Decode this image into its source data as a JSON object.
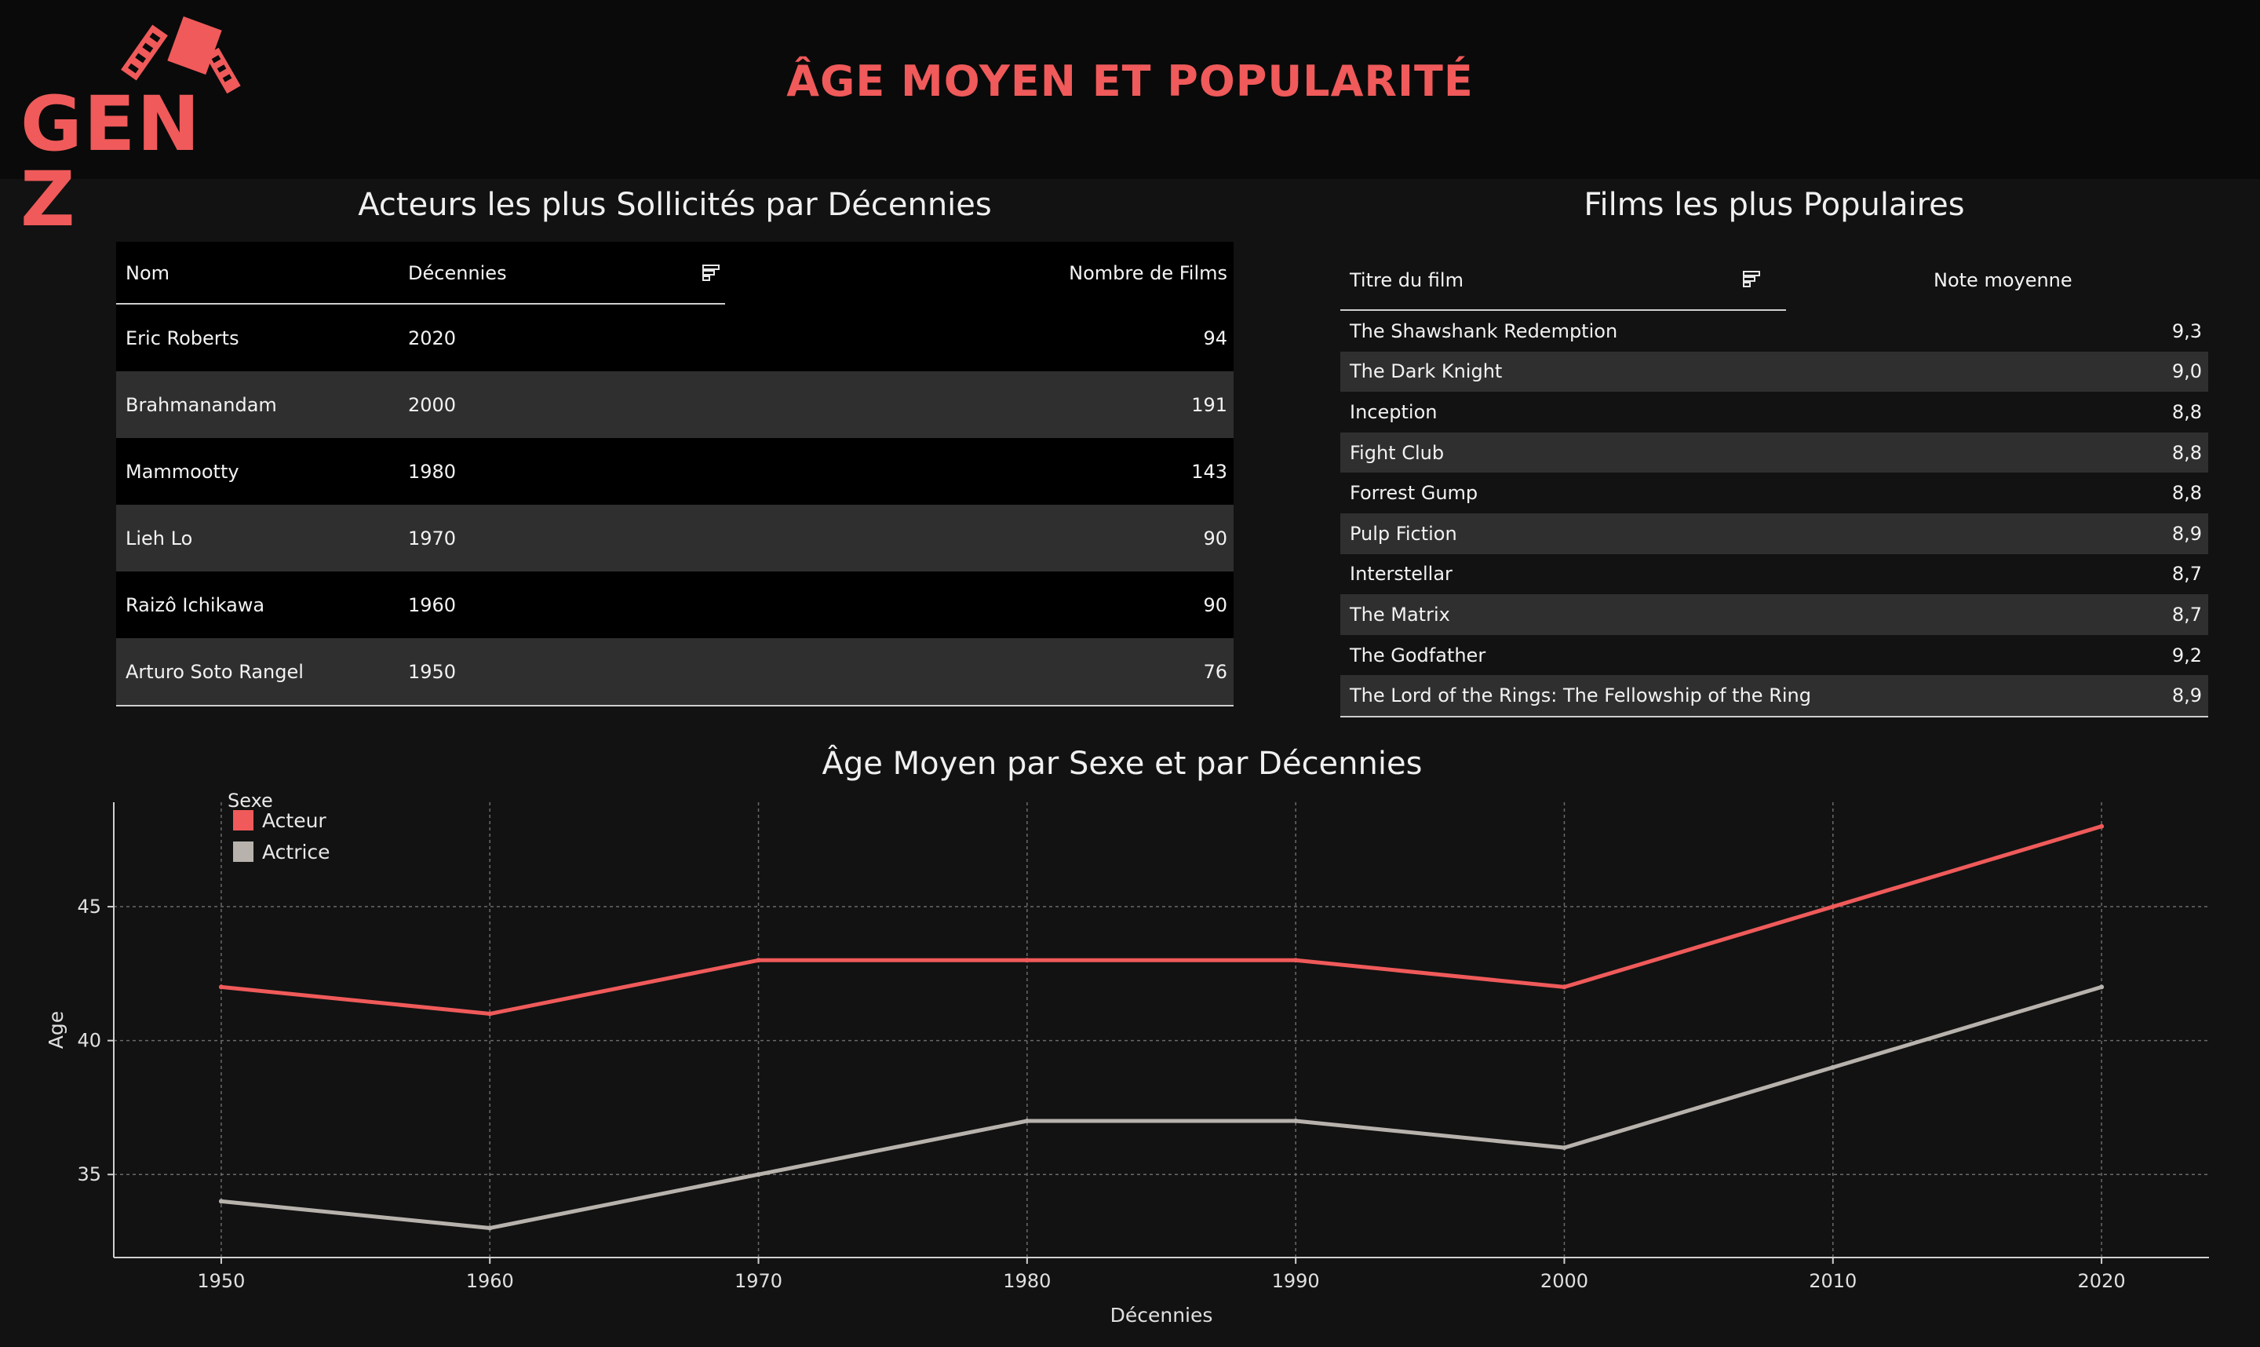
{
  "header": {
    "logo_text": "GEN Z",
    "title": "ÂGE MOYEN ET POPULARITÉ"
  },
  "actors_table": {
    "title": "Acteurs les plus Sollicités par Décennies",
    "columns": [
      "Nom",
      "Décennies",
      "Nombre de Films"
    ],
    "rows": [
      {
        "name": "Eric Roberts",
        "decade": "2020",
        "films": "94"
      },
      {
        "name": "Brahmanandam",
        "decade": "2000",
        "films": "191"
      },
      {
        "name": "Mammootty",
        "decade": "1980",
        "films": "143"
      },
      {
        "name": "Lieh Lo",
        "decade": "1970",
        "films": "90"
      },
      {
        "name": "Raizô Ichikawa",
        "decade": "1960",
        "films": "90"
      },
      {
        "name": "Arturo Soto Rangel",
        "decade": "1950",
        "films": "76"
      }
    ]
  },
  "films_table": {
    "title": "Films les plus Populaires",
    "columns": [
      "Titre du film",
      "Note moyenne"
    ],
    "rows": [
      {
        "title": "The Shawshank Redemption",
        "rating": "9,3"
      },
      {
        "title": "The Dark Knight",
        "rating": "9,0"
      },
      {
        "title": "Inception",
        "rating": "8,8"
      },
      {
        "title": "Fight Club",
        "rating": "8,8"
      },
      {
        "title": "Forrest Gump",
        "rating": "8,8"
      },
      {
        "title": "Pulp Fiction",
        "rating": "8,9"
      },
      {
        "title": "Interstellar",
        "rating": "8,7"
      },
      {
        "title": "The Matrix",
        "rating": "8,7"
      },
      {
        "title": "The Godfather",
        "rating": "9,2"
      },
      {
        "title": "The Lord of the Rings: The Fellowship of the Ring",
        "rating": "8,9"
      }
    ]
  },
  "chart_data": {
    "type": "line",
    "title": "Âge Moyen par Sexe et par Décennies",
    "xlabel": "Décennies",
    "ylabel": "Age",
    "x": [
      1950,
      1960,
      1970,
      1980,
      1990,
      2000,
      2010,
      2020
    ],
    "xlim": [
      1946,
      2024
    ],
    "ylim": [
      31.9,
      48.9
    ],
    "yticks": [
      35,
      40,
      45
    ],
    "grid": true,
    "legend": {
      "title": "Sexe",
      "position": "top-left"
    },
    "series": [
      {
        "name": "Acteur",
        "color": "#f05a5a",
        "values": [
          42,
          41,
          43,
          43,
          43,
          42,
          45,
          48
        ]
      },
      {
        "name": "Actrice",
        "color": "#b8b2ad",
        "values": [
          34,
          33,
          35,
          37,
          37,
          36,
          39,
          42
        ]
      }
    ]
  },
  "colors": {
    "accent": "#f05a5a",
    "secondary": "#b8b2ad",
    "background": "#121212"
  }
}
